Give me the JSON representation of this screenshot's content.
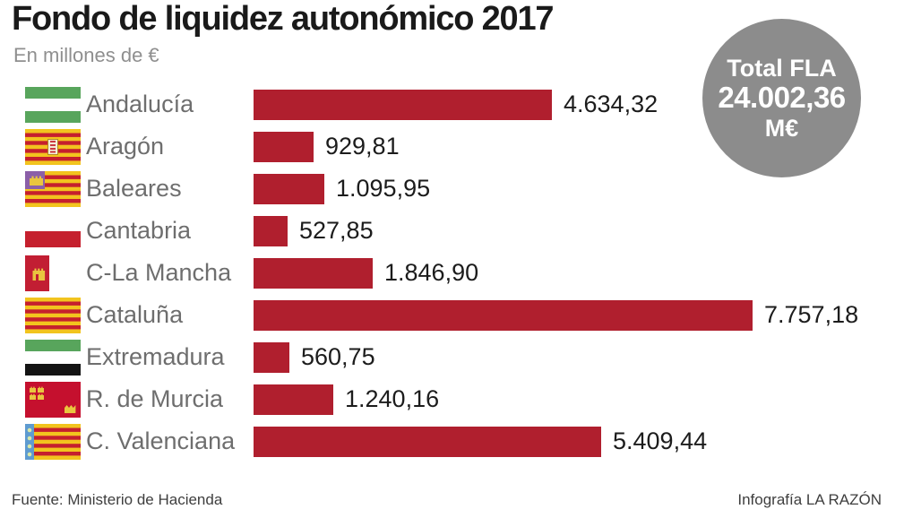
{
  "header": {
    "title": "Fondo de liquidez autonómico 2017",
    "subtitle": "En millones de €"
  },
  "total": {
    "label": "Total FLA",
    "value": "24.002,36",
    "unit": "M€"
  },
  "footer": {
    "source": "Fuente: Ministerio de Hacienda",
    "credit": "Infografía LA RAZÓN"
  },
  "colors": {
    "bar_red": "#b01f2e",
    "badge_gray": "#8c8c8c",
    "label_gray": "#6e6e6e",
    "value_black": "#1c1c1c",
    "title_black": "#1a1a1a"
  },
  "chart_data": {
    "type": "bar",
    "orientation": "horizontal",
    "title": "Fondo de liquidez autonómico 2017",
    "subtitle": "En millones de €",
    "unit": "millones de €",
    "categories": [
      "Andalucía",
      "Aragón",
      "Baleares",
      "Cantabria",
      "C-La Mancha",
      "Cataluña",
      "Extremadura",
      "R. de Murcia",
      "C. Valenciana"
    ],
    "values": [
      4634.32,
      929.81,
      1095.95,
      527.85,
      1846.9,
      7757.18,
      560.75,
      1240.16,
      5409.44
    ],
    "value_labels": [
      "4.634,32",
      "929,81",
      "1.095,95",
      "527,85",
      "1.846,90",
      "7.757,18",
      "560,75",
      "1.240,16",
      "5.409,44"
    ],
    "flags": [
      "flag-andalucia-icon",
      "flag-aragon-icon",
      "flag-baleares-icon",
      "flag-cantabria-icon",
      "flag-castilla-la-mancha-icon",
      "flag-cataluna-icon",
      "flag-extremadura-icon",
      "flag-murcia-icon",
      "flag-valenciana-icon"
    ],
    "xlim": [
      0,
      7757.18
    ],
    "total": 24002.36,
    "total_label": "Total FLA 24.002,36 M€",
    "grid": false,
    "legend": false,
    "source": "Fuente: Ministerio de Hacienda",
    "credit": "Infografía LA RAZÓN"
  }
}
